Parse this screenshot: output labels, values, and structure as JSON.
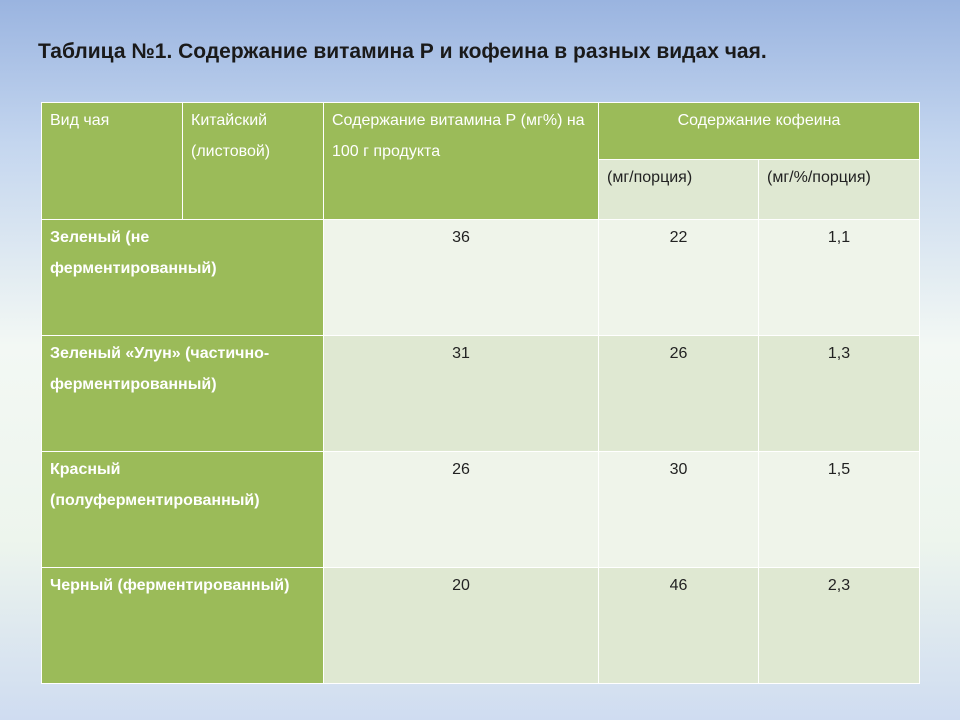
{
  "title": "Таблица №1. Содержание витамина Р и кофеина в разных видах чая.",
  "header": {
    "col_type": "Вид чая",
    "col_chinese": "Китайский (листовой)",
    "col_vitamin": "Содержание витамина Р (мг%) на 100 г продукта",
    "col_caffeine": "Содержание кофеина",
    "sub_mg_portion": "(мг/порция)",
    "sub_mg_pct_portion": "(мг/%/порция)"
  },
  "rows": [
    {
      "name": "Зеленый (не ферментированный)",
      "vitamin": "36",
      "caffeine_mg": "22",
      "caffeine_pct": "1,1"
    },
    {
      "name": "Зеленый «Улун» (частично-ферментированный)",
      "vitamin": "31",
      "caffeine_mg": "26",
      "caffeine_pct": "1,3"
    },
    {
      "name": "Красный (полуферментированный)",
      "vitamin": "26",
      "caffeine_mg": "30",
      "caffeine_pct": "1,5"
    },
    {
      "name": "Черный (ферментированный)",
      "vitamin": "20",
      "caffeine_mg": "46",
      "caffeine_pct": "2,3"
    }
  ],
  "colors": {
    "header_green": "#9bbb59",
    "cell_light": "#eff4ea",
    "cell_dark": "#dfe8d2",
    "text_dark": "#222222"
  }
}
